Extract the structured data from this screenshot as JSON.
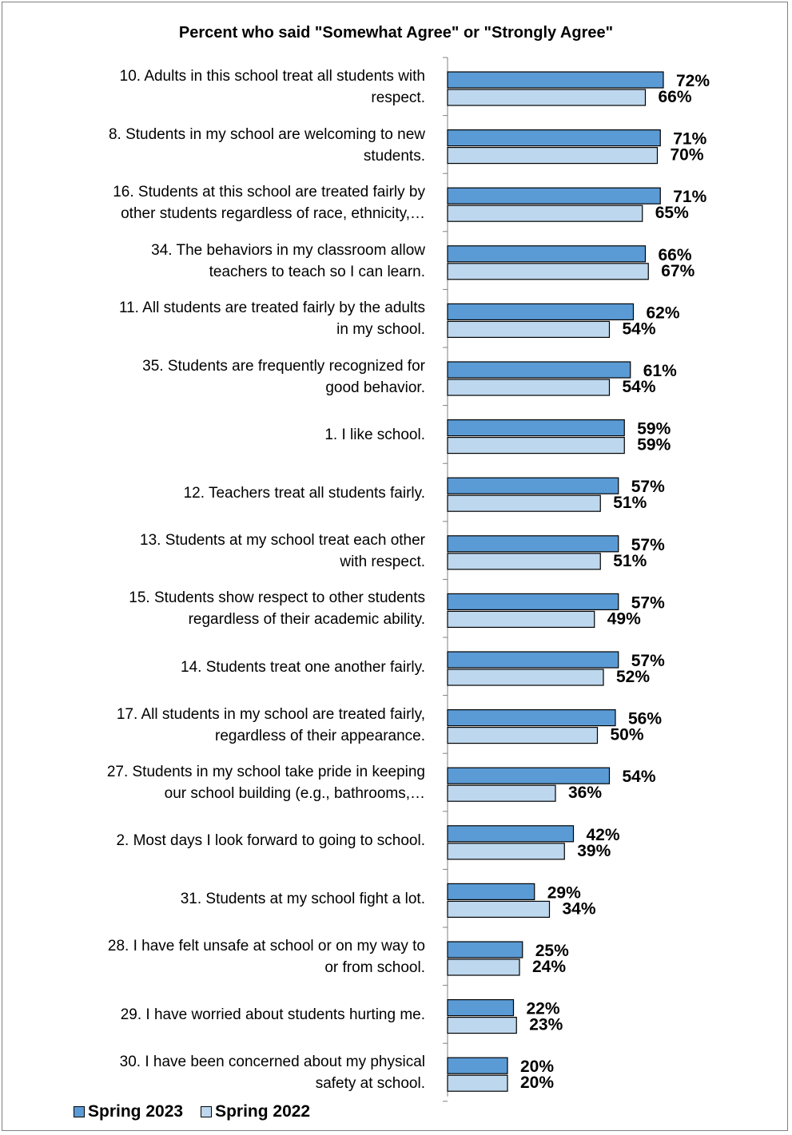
{
  "chart_data": {
    "type": "bar",
    "orientation": "horizontal",
    "title": "Percent who said \"Somewhat Agree\" or \"Strongly Agree\"",
    "xlim": [
      0,
      100
    ],
    "grid": false,
    "legend_position": "bottom-left",
    "categories": [
      "10. Adults in this school treat all students with respect.",
      "8. Students in my school are welcoming to new students.",
      "16. Students at this school are treated fairly by other students regardless of race, ethnicity,…",
      "34. The behaviors in my classroom allow teachers to teach so I can learn.",
      "11. All students are treated fairly by the adults in my school.",
      "35. Students are frequently recognized for good behavior.",
      "1. I like school.",
      "12. Teachers treat all students fairly.",
      "13. Students at my school treat each other with respect.",
      "15. Students show respect to other students regardless of their academic ability.",
      "14. Students treat one another fairly.",
      "17. All students in my school are treated fairly, regardless of their appearance.",
      "27. Students in my school take pride in keeping our school building (e.g., bathrooms,…",
      "2. Most days I look forward to going to school.",
      "31. Students at my school fight a lot.",
      "28. I have felt unsafe at school or on my way to or from school.",
      "29. I have worried about students hurting me.",
      "30. I have been concerned about my physical safety at school."
    ],
    "category_lines": [
      "10. Adults in this school treat all students with\nrespect.",
      "8. Students in my school are welcoming to new\nstudents.",
      "16. Students at this school are treated fairly by\nother students regardless of race, ethnicity,…",
      "34. The behaviors in my classroom allow\nteachers to teach so I can learn.",
      "11. All students are treated fairly by the adults\nin my school.",
      "35. Students are frequently recognized for\ngood behavior.",
      "1. I like school.",
      "12. Teachers treat all students fairly.",
      "13. Students at my school treat each other\nwith respect.",
      "15. Students show respect to other students\nregardless of their academic ability.",
      "14. Students treat one another fairly.",
      "17. All students in my school are treated fairly,\nregardless of their appearance.",
      "27. Students in my school take pride in keeping\nour school building (e.g., bathrooms,…",
      "2. Most days I look forward to going to school.",
      "31. Students at my school fight a lot.",
      "28. I have felt unsafe at school or on my way to\nor from school.",
      "29. I have worried about students hurting me.",
      "30. I have been concerned about my physical\nsafety at school."
    ],
    "series": [
      {
        "name": "Spring 2023",
        "color": "#5b9bd5",
        "values": [
          72,
          71,
          71,
          66,
          62,
          61,
          59,
          57,
          57,
          57,
          57,
          56,
          54,
          42,
          29,
          25,
          22,
          20
        ],
        "labels": [
          "72%",
          "71%",
          "71%",
          "66%",
          "62%",
          "61%",
          "59%",
          "57%",
          "57%",
          "57%",
          "57%",
          "56%",
          "54%",
          "42%",
          "29%",
          "25%",
          "22%",
          "20%"
        ]
      },
      {
        "name": "Spring 2022",
        "color": "#bdd7ee",
        "values": [
          66,
          70,
          65,
          67,
          54,
          54,
          59,
          51,
          51,
          49,
          52,
          50,
          36,
          39,
          34,
          24,
          23,
          20
        ],
        "labels": [
          "66%",
          "70%",
          "65%",
          "67%",
          "54%",
          "54%",
          "59%",
          "51%",
          "51%",
          "49%",
          "52%",
          "50%",
          "36%",
          "39%",
          "34%",
          "24%",
          "23%",
          "20%"
        ]
      }
    ]
  }
}
